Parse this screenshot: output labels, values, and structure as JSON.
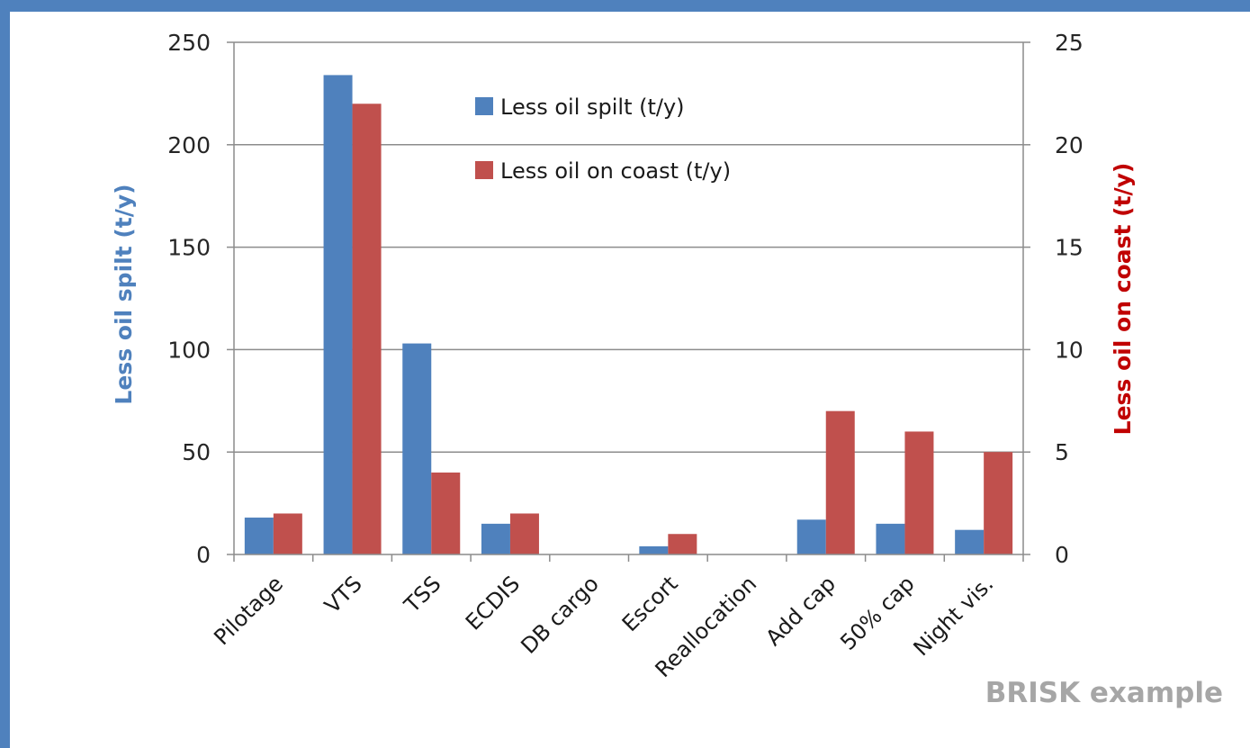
{
  "colors": {
    "frame": "#4f81bd",
    "series_spilt": "#4f81bd",
    "series_coast": "#c0504d",
    "left_axis_title": "#4f81bd",
    "right_axis_title": "#c00000",
    "grid": "#8c8c8c"
  },
  "watermark": "BRISK example",
  "chart_data": {
    "type": "bar",
    "categories": [
      "Pilotage",
      "VTS",
      "TSS",
      "ECDIS",
      "DB cargo",
      "Escort",
      "Reallocation",
      "Add cap",
      "50% cap",
      "Night vis."
    ],
    "series": [
      {
        "name": "Less oil spilt (t/y)",
        "axis": "left",
        "values": [
          18,
          234,
          103,
          15,
          0,
          4,
          0,
          17,
          15,
          12
        ]
      },
      {
        "name": "Less oil on coast (t/y)",
        "axis": "right",
        "values": [
          2,
          22,
          4,
          2,
          0,
          1,
          0,
          7,
          6,
          5
        ]
      }
    ],
    "ylabel": "Less oil spilt (t/y)",
    "y2label": "Less oil on coast (t/y)",
    "ylim": [
      0,
      250
    ],
    "y2lim": [
      0,
      25
    ],
    "yticks": [
      "0",
      "50",
      "100",
      "150",
      "200",
      "250"
    ],
    "y2ticks": [
      "0",
      "5",
      "10",
      "15",
      "20",
      "25"
    ],
    "grid": true,
    "legend_position": "top-center"
  }
}
